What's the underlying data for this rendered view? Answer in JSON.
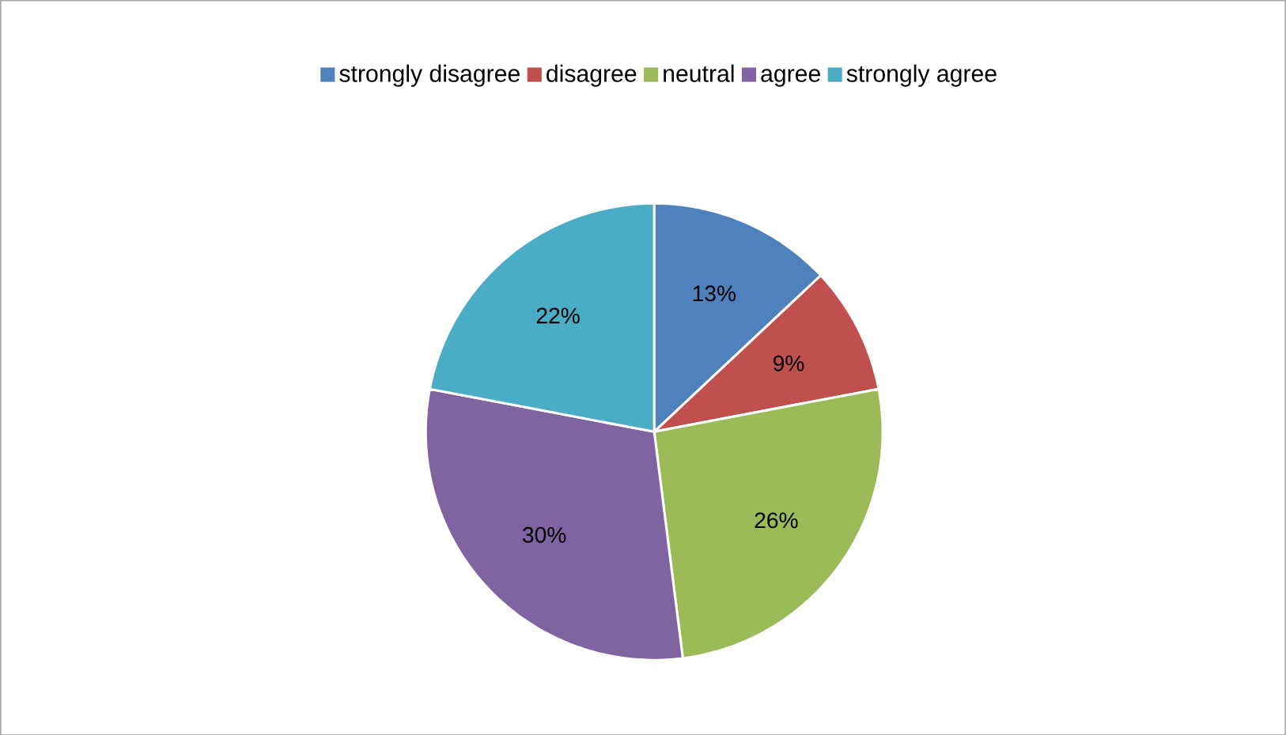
{
  "chart_data": {
    "type": "pie",
    "categories": [
      "strongly disagree",
      "disagree",
      "neutral",
      "agree",
      "strongly agree"
    ],
    "values": [
      13,
      9,
      26,
      30,
      22
    ],
    "colors": [
      "#4f81bd",
      "#c0504d",
      "#9bbb59",
      "#8064a2",
      "#4bacc6"
    ],
    "value_labels": [
      "13%",
      "9%",
      "26%",
      "30%",
      "22%"
    ],
    "legend": "top"
  }
}
